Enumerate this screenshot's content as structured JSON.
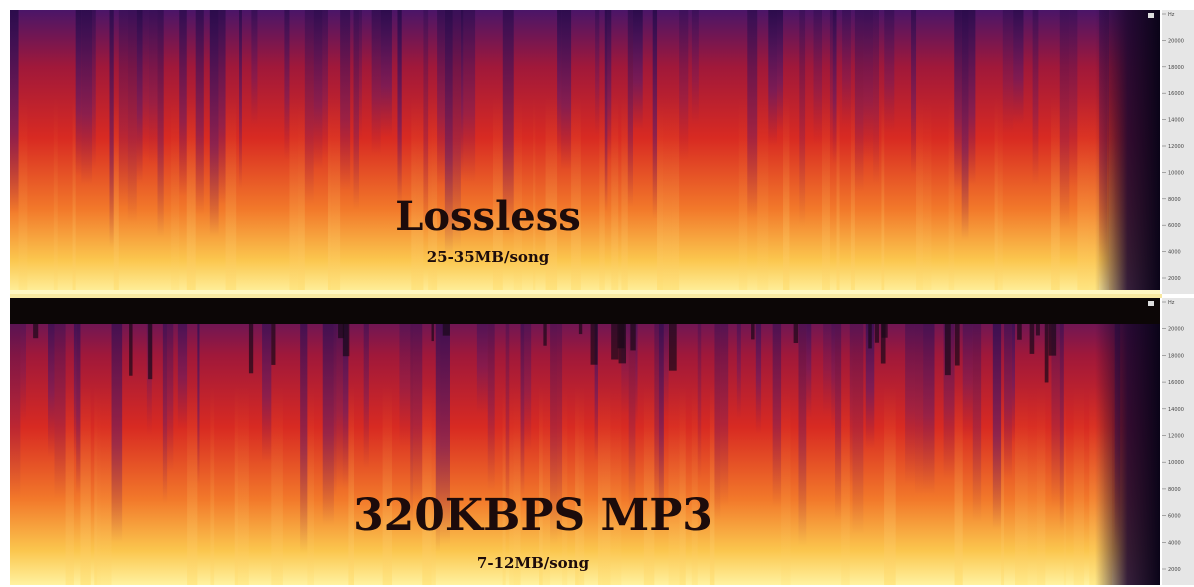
{
  "panels": [
    {
      "title": "Lossless",
      "subtitle": "25-35MB/song",
      "axis_labels": [
        "Hz",
        "20000",
        "18000",
        "16000",
        "14000",
        "12000",
        "10000",
        "8000",
        "6000",
        "4000",
        "2000"
      ]
    },
    {
      "title": "320KBPS MP3",
      "subtitle": "7-12MB/song",
      "axis_labels": [
        "Hz",
        "20000",
        "18000",
        "16000",
        "14000",
        "12000",
        "10000",
        "8000",
        "6000",
        "4000",
        "2000"
      ]
    }
  ]
}
